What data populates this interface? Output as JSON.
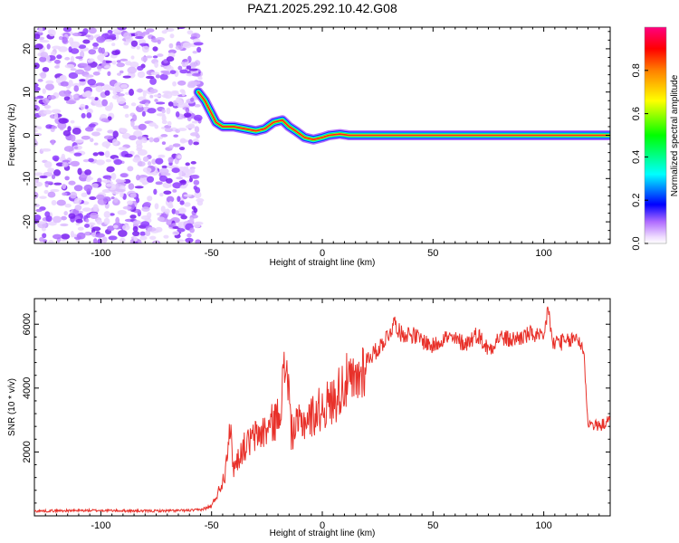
{
  "title": "PAZ1.2025.292.10.42.G08",
  "chart_data": [
    {
      "type": "heatmap",
      "title": "PAZ1.2025.292.10.42.G08",
      "xlabel": "Height of straight line (km)",
      "ylabel": "Frequency (Hz)",
      "xlim": [
        -130,
        130
      ],
      "ylim": [
        -25,
        25
      ],
      "xticks": [
        -100,
        -50,
        0,
        50,
        100
      ],
      "yticks": [
        -20,
        -10,
        0,
        10,
        20
      ],
      "colorbar": {
        "label": "Normalized spectral amplitude",
        "range": [
          0,
          1
        ],
        "ticks": [
          0.0,
          0.2,
          0.4,
          0.6,
          0.8
        ],
        "colors": [
          "#ffffff",
          "#cf9cff",
          "#8000ff",
          "#0000ff",
          "#00ffff",
          "#00ff00",
          "#ffff00",
          "#ff8000",
          "#ff0000",
          "#ff0080"
        ]
      },
      "noise_region_x": [
        -130,
        -55
      ],
      "ridge": {
        "x": [
          -56,
          -53,
          -50,
          -48,
          -45,
          -40,
          -35,
          -30,
          -26,
          -22,
          -18,
          -15,
          -12,
          -8,
          -4,
          0,
          3,
          8,
          12,
          20,
          130
        ],
        "freq": [
          10,
          8,
          5,
          3,
          2,
          2,
          1.5,
          1,
          1.5,
          3,
          3.5,
          2,
          1,
          -0.5,
          -1,
          -0.5,
          0,
          0.3,
          0,
          0,
          0
        ]
      }
    },
    {
      "type": "line",
      "xlabel": "Height of straight line (km)",
      "ylabel": "SNR (10 * v/v)",
      "xlim": [
        -130,
        130
      ],
      "ylim": [
        0,
        6800
      ],
      "xticks": [
        -100,
        -50,
        0,
        50,
        100
      ],
      "yticks": [
        2000,
        4000,
        6000
      ],
      "series": [
        {
          "name": "SNR",
          "color": "#e8312a",
          "x": [
            -130,
            -120,
            -100,
            -80,
            -60,
            -55,
            -50,
            -46,
            -44,
            -42,
            -40,
            -36,
            -30,
            -25,
            -20,
            -16,
            -14,
            -10,
            -5,
            0,
            5,
            10,
            15,
            20,
            25,
            30,
            33,
            35,
            40,
            45,
            50,
            55,
            60,
            65,
            70,
            75,
            80,
            85,
            90,
            95,
            100,
            102,
            104,
            106,
            110,
            115,
            118,
            120,
            125,
            130
          ],
          "y": [
            150,
            160,
            170,
            150,
            170,
            190,
            300,
            900,
            1300,
            2900,
            1500,
            2100,
            2500,
            2700,
            3100,
            4900,
            2600,
            2900,
            3100,
            3400,
            3600,
            4200,
            4100,
            4900,
            5200,
            5700,
            6100,
            5700,
            5700,
            5500,
            5300,
            5600,
            5500,
            5400,
            5700,
            5200,
            5600,
            5500,
            5600,
            5700,
            5500,
            6600,
            5300,
            5500,
            5400,
            5600,
            5200,
            2900,
            2800,
            3000
          ]
        }
      ]
    }
  ]
}
